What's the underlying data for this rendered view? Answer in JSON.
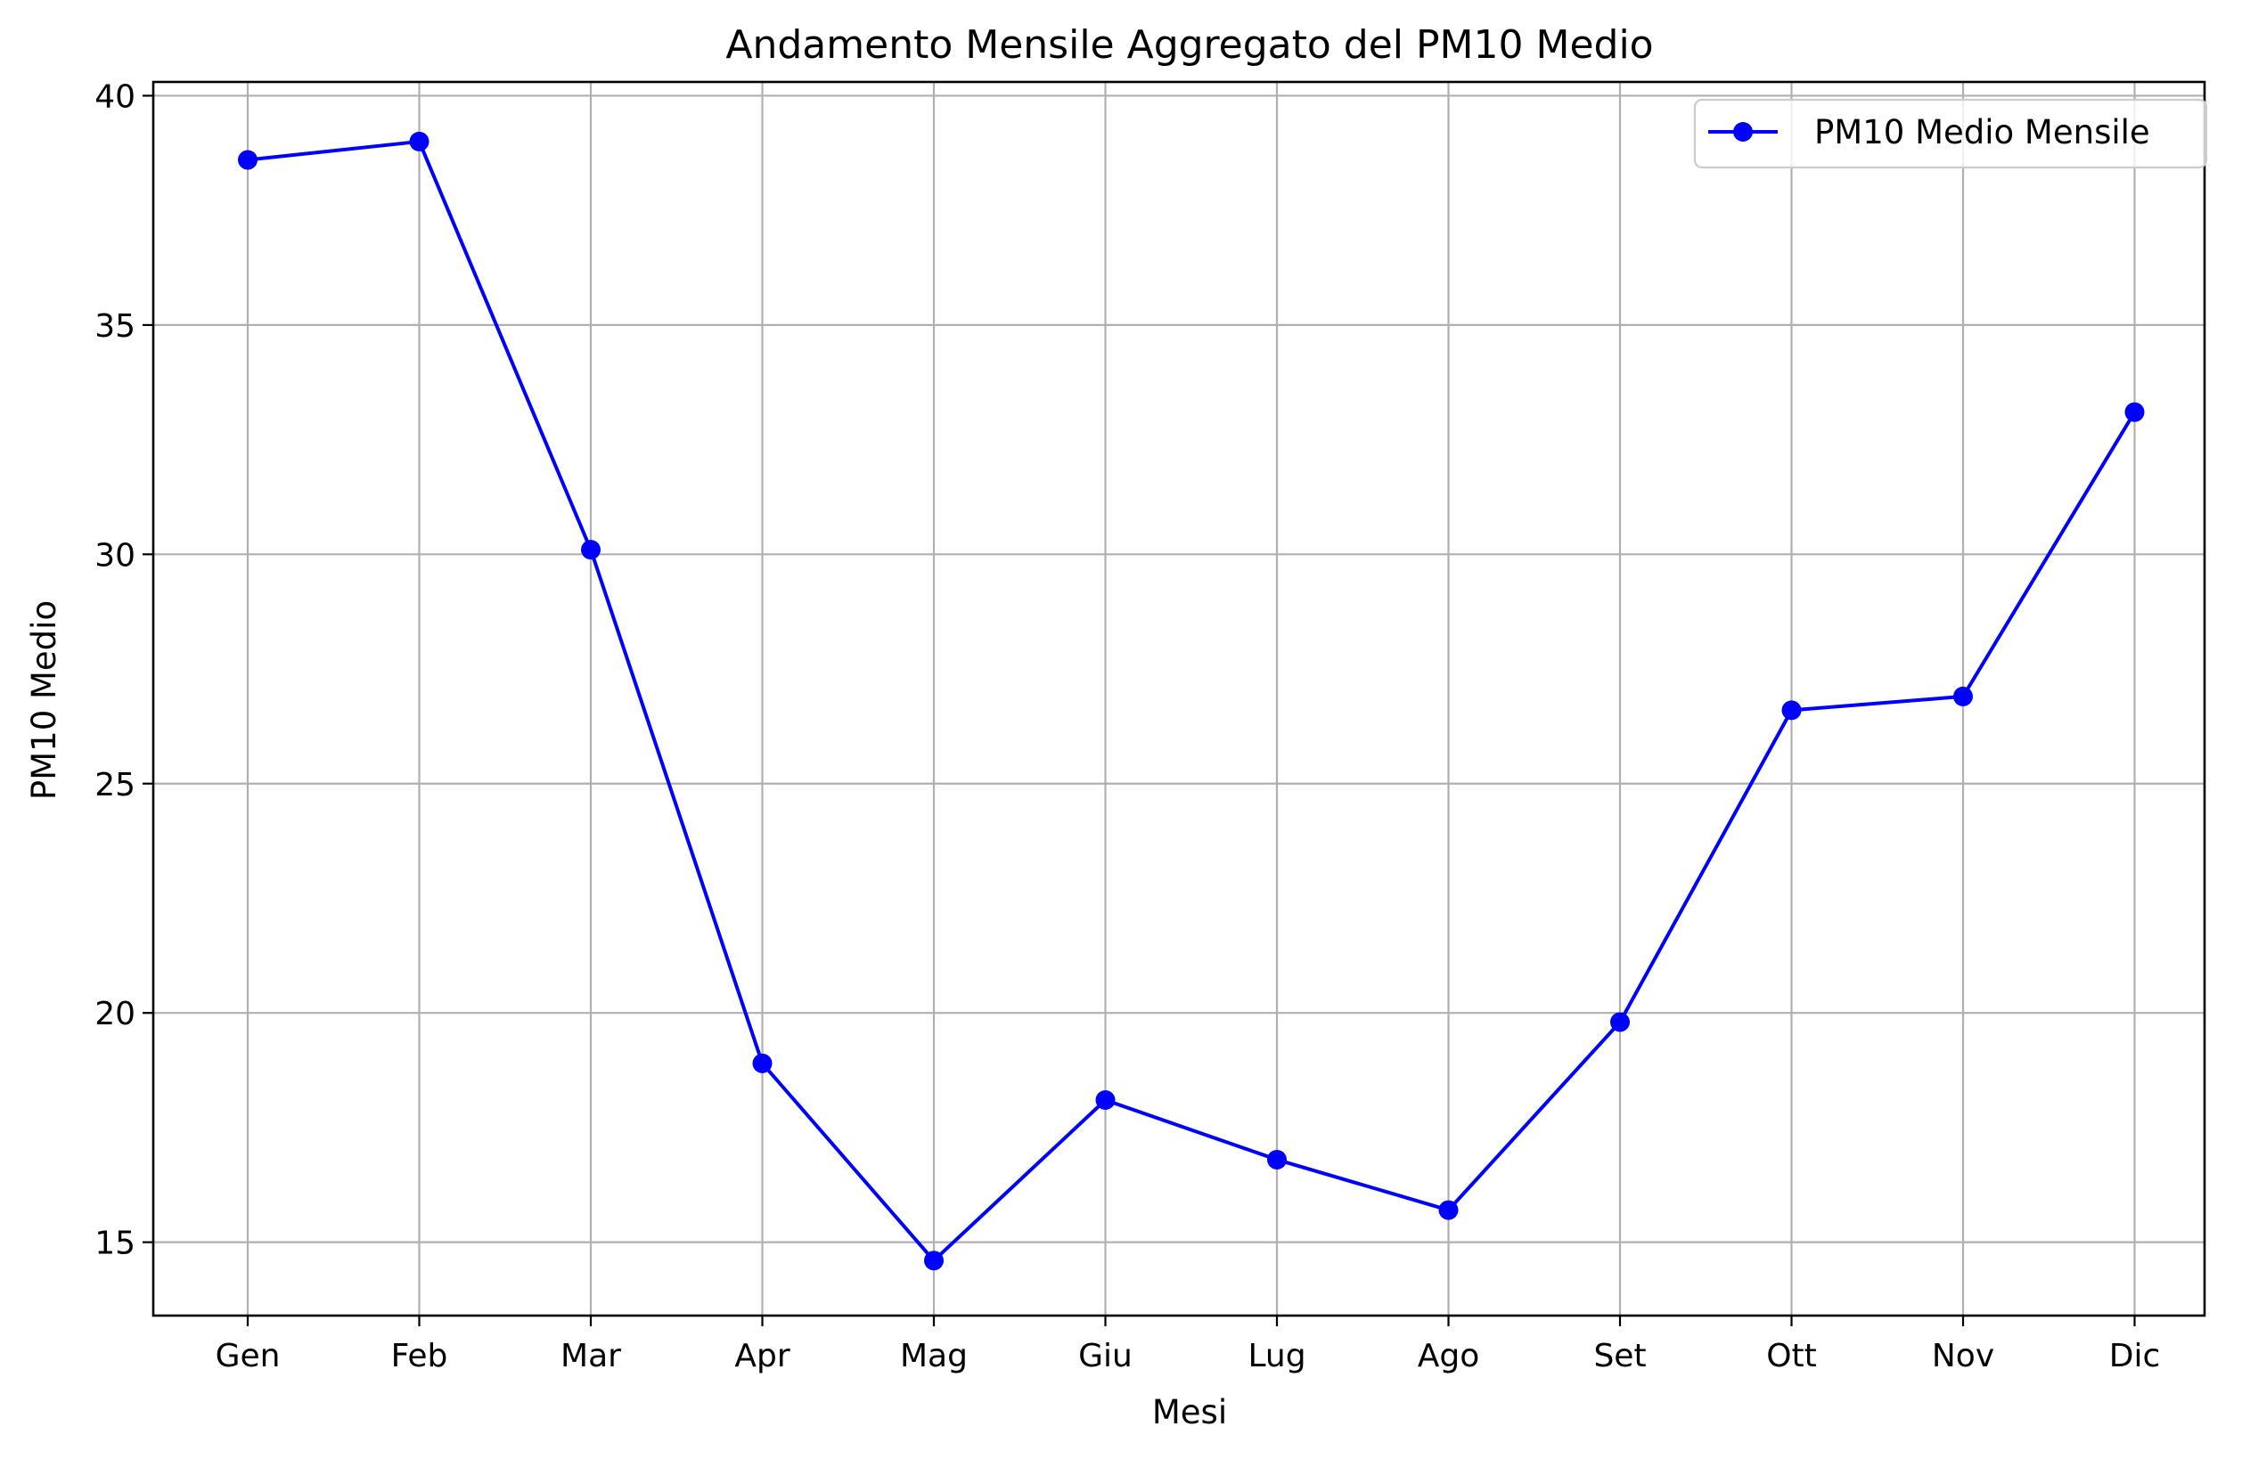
{
  "chart_data": {
    "type": "line",
    "title": "Andamento Mensile Aggregato del PM10 Medio",
    "xlabel": "Mesi",
    "ylabel": "PM10 Medio",
    "categories": [
      "Gen",
      "Feb",
      "Mar",
      "Apr",
      "Mag",
      "Giu",
      "Lug",
      "Ago",
      "Set",
      "Ott",
      "Nov",
      "Dic"
    ],
    "series": [
      {
        "name": "PM10 Medio Mensile",
        "color": "#0000ff",
        "marker": "circle",
        "values": [
          38.6,
          39.0,
          30.1,
          18.9,
          14.6,
          18.1,
          16.8,
          15.7,
          19.8,
          26.6,
          26.9,
          33.1
        ]
      }
    ],
    "ylim": [
      13.4,
      40.3
    ],
    "yticks": [
      15,
      20,
      25,
      30,
      35,
      40
    ],
    "grid": true,
    "legend": "top-right"
  }
}
